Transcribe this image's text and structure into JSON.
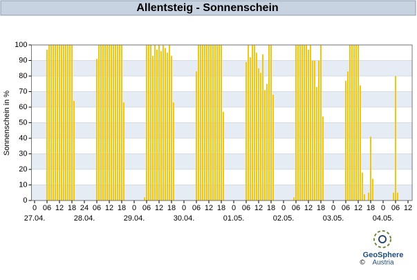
{
  "header": {
    "title": "Allentsteig - Sonnenschein"
  },
  "chart_data": {
    "type": "bar",
    "ylabel": "Sonnenschein in %",
    "color": "#f2c80f",
    "x": [
      6,
      7,
      8,
      9,
      10,
      11,
      12,
      13,
      14,
      15,
      16,
      17,
      18,
      19,
      30,
      31,
      32,
      33,
      34,
      35,
      36,
      37,
      38,
      39,
      40,
      41,
      42,
      43,
      53,
      54,
      55,
      56,
      57,
      58,
      59,
      60,
      61,
      62,
      63,
      64,
      65,
      66,
      67,
      78,
      79,
      80,
      81,
      82,
      83,
      84,
      85,
      86,
      87,
      88,
      89,
      90,
      91,
      102,
      103,
      104,
      105,
      106,
      107,
      108,
      109,
      110,
      111,
      112,
      113,
      114,
      115,
      125,
      126,
      127,
      128,
      129,
      130,
      131,
      132,
      133,
      134,
      135,
      136,
      137,
      138,
      139,
      150,
      151,
      152,
      153,
      154,
      155,
      156,
      157,
      158,
      159,
      161,
      162,
      163,
      173,
      174,
      175
    ],
    "values": [
      97,
      100,
      100,
      100,
      100,
      100,
      100,
      100,
      100,
      100,
      100,
      100,
      100,
      64,
      91,
      100,
      100,
      100,
      100,
      100,
      100,
      100,
      100,
      100,
      100,
      100,
      100,
      63,
      2,
      100,
      100,
      100,
      93,
      100,
      97,
      100,
      96,
      100,
      98,
      95,
      100,
      93,
      63,
      83,
      100,
      100,
      100,
      100,
      100,
      100,
      100,
      100,
      100,
      100,
      100,
      100,
      57,
      89,
      100,
      92,
      100,
      100,
      95,
      85,
      82,
      94,
      71,
      75,
      100,
      100,
      68,
      2,
      100,
      100,
      100,
      100,
      100,
      100,
      97,
      100,
      90,
      90,
      73,
      90,
      100,
      54,
      77,
      83,
      100,
      100,
      100,
      100,
      100,
      74,
      18,
      4,
      5,
      41,
      14,
      5,
      80,
      5
    ],
    "xlim": [
      -1.5,
      182
    ],
    "xticks": [
      0,
      {
        "value": 6,
        "label": "06"
      },
      12,
      18,
      24,
      {
        "value": 30,
        "label": "06"
      },
      {
        "value": 36,
        "label": "12"
      },
      {
        "value": 42,
        "label": "18"
      },
      {
        "value": 48,
        "label": "0"
      },
      {
        "value": 54,
        "label": "06"
      },
      {
        "value": 60,
        "label": "12"
      },
      {
        "value": 66,
        "label": "18"
      },
      {
        "value": 72,
        "label": "0"
      },
      {
        "value": 78,
        "label": "06"
      },
      {
        "value": 84,
        "label": "12"
      },
      {
        "value": 90,
        "label": "18"
      },
      {
        "value": 96,
        "label": "0"
      },
      {
        "value": 102,
        "label": "06"
      },
      {
        "value": 108,
        "label": "12"
      },
      {
        "value": 114,
        "label": "18"
      },
      {
        "value": 120,
        "label": "0"
      },
      {
        "value": 126,
        "label": "06"
      },
      {
        "value": 132,
        "label": "12"
      },
      {
        "value": 138,
        "label": "18"
      },
      {
        "value": 144,
        "label": "0"
      },
      {
        "value": 150,
        "label": "06"
      },
      {
        "value": 156,
        "label": "12"
      },
      {
        "value": 162,
        "label": "18"
      },
      {
        "value": 168,
        "label": "0"
      },
      {
        "value": 174,
        "label": "06"
      },
      {
        "value": 180,
        "label": "12"
      }
    ],
    "day_ticks": [
      {
        "value": 0,
        "label": "27.04."
      },
      {
        "value": 24,
        "label": "28.04."
      },
      {
        "value": 48,
        "label": "29.04."
      },
      {
        "value": 72,
        "label": "30.04."
      },
      {
        "value": 96,
        "label": "01.05."
      },
      {
        "value": 120,
        "label": "02.05."
      },
      {
        "value": 144,
        "label": "03.05."
      },
      {
        "value": 168,
        "label": "04.05."
      }
    ],
    "ylim": [
      0,
      100
    ],
    "yticks": [
      0,
      10,
      20,
      30,
      40,
      50,
      60,
      70,
      80,
      90,
      100
    ],
    "grid": true
  },
  "logo": {
    "name": "GeoSphere",
    "sub": "Austria",
    "copyright": "©"
  }
}
